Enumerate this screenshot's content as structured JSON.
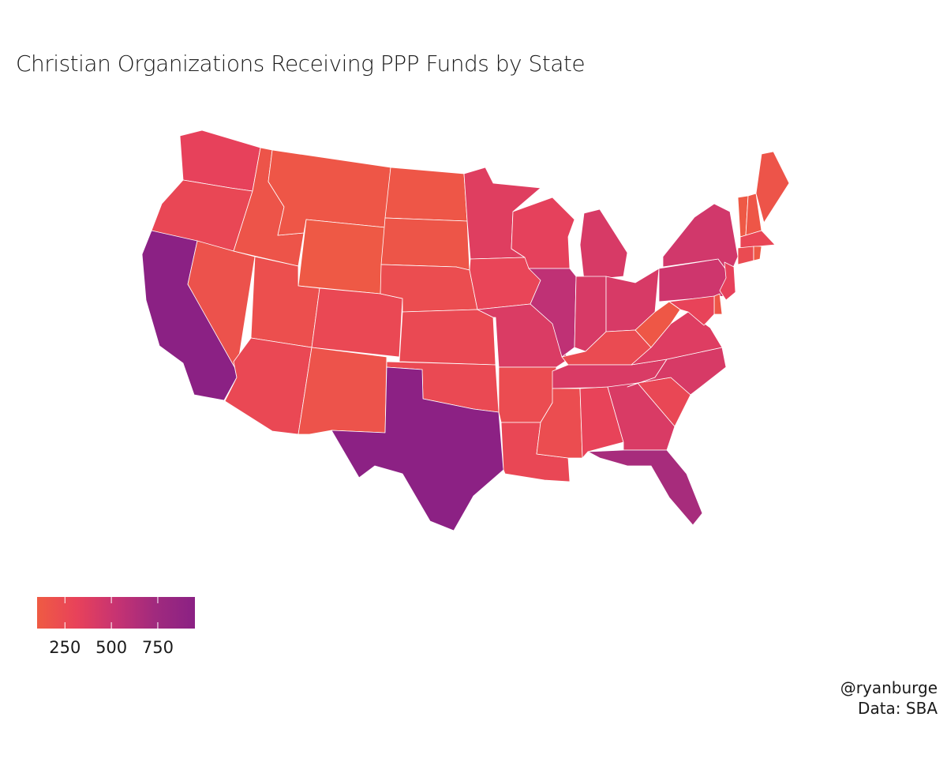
{
  "title": "Christian Organizations Receiving PPP Funds by State",
  "caption": {
    "line1": "@ryanburge",
    "line2": "Data: SBA"
  },
  "legend": {
    "scale_min": 100,
    "scale_max": 950,
    "ticks": [
      {
        "value": 250,
        "label": "250"
      },
      {
        "value": 500,
        "label": "500"
      },
      {
        "value": 750,
        "label": "750"
      }
    ],
    "gradient": [
      "#ef5b43",
      "#e8425a",
      "#c73372",
      "#a02a7e",
      "#8b2184"
    ]
  },
  "map_data": {
    "type": "choropleth",
    "states": [
      {
        "abbr": "WA",
        "value": 320
      },
      {
        "abbr": "OR",
        "value": 270
      },
      {
        "abbr": "CA",
        "value": 950
      },
      {
        "abbr": "NV",
        "value": 180
      },
      {
        "abbr": "ID",
        "value": 160
      },
      {
        "abbr": "MT",
        "value": 140
      },
      {
        "abbr": "WY",
        "value": 120
      },
      {
        "abbr": "UT",
        "value": 200
      },
      {
        "abbr": "AZ",
        "value": 260
      },
      {
        "abbr": "CO",
        "value": 260
      },
      {
        "abbr": "NM",
        "value": 170
      },
      {
        "abbr": "ND",
        "value": 140
      },
      {
        "abbr": "SD",
        "value": 150
      },
      {
        "abbr": "NE",
        "value": 220
      },
      {
        "abbr": "KS",
        "value": 250
      },
      {
        "abbr": "OK",
        "value": 250
      },
      {
        "abbr": "TX",
        "value": 940
      },
      {
        "abbr": "MN",
        "value": 370
      },
      {
        "abbr": "IA",
        "value": 290
      },
      {
        "abbr": "MO",
        "value": 400
      },
      {
        "abbr": "AR",
        "value": 230
      },
      {
        "abbr": "LA",
        "value": 270
      },
      {
        "abbr": "WI",
        "value": 330
      },
      {
        "abbr": "IL",
        "value": 570
      },
      {
        "abbr": "MI",
        "value": 420
      },
      {
        "abbr": "IN",
        "value": 420
      },
      {
        "abbr": "OH",
        "value": 420
      },
      {
        "abbr": "KY",
        "value": 240
      },
      {
        "abbr": "TN",
        "value": 410
      },
      {
        "abbr": "MS",
        "value": 220
      },
      {
        "abbr": "AL",
        "value": 300
      },
      {
        "abbr": "GA",
        "value": 410
      },
      {
        "abbr": "FL",
        "value": 700
      },
      {
        "abbr": "SC",
        "value": 270
      },
      {
        "abbr": "NC",
        "value": 420
      },
      {
        "abbr": "VA",
        "value": 380
      },
      {
        "abbr": "WV",
        "value": 130
      },
      {
        "abbr": "PA",
        "value": 480
      },
      {
        "abbr": "NY",
        "value": 460
      },
      {
        "abbr": "VT",
        "value": 120
      },
      {
        "abbr": "NH",
        "value": 140
      },
      {
        "abbr": "ME",
        "value": 160
      },
      {
        "abbr": "MA",
        "value": 280
      },
      {
        "abbr": "CT",
        "value": 240
      },
      {
        "abbr": "RI",
        "value": 120
      },
      {
        "abbr": "NJ",
        "value": 320
      },
      {
        "abbr": "DE",
        "value": 140
      },
      {
        "abbr": "MD",
        "value": 300
      }
    ]
  }
}
